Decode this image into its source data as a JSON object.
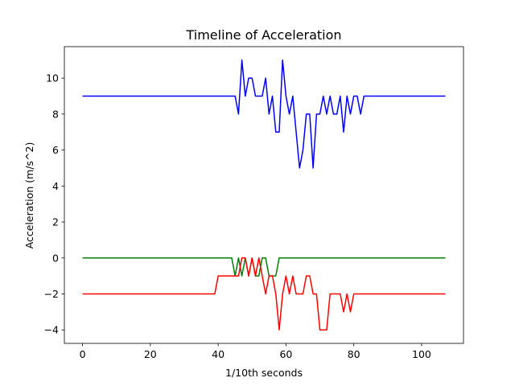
{
  "chart_data": {
    "type": "line",
    "title": "Timeline of Acceleration",
    "xlabel": "1/10th seconds",
    "ylabel": "Acceleration (m/s^2)",
    "xlim": [
      -5.35,
      112.35
    ],
    "ylim": [
      -4.75,
      11.75
    ],
    "xticks": [
      0,
      20,
      40,
      60,
      80,
      100
    ],
    "yticks": [
      -4,
      -2,
      0,
      2,
      4,
      6,
      8,
      10
    ],
    "grid": false,
    "legend": "none",
    "series": [
      {
        "color": "#0000ff",
        "points": [
          [
            0,
            9
          ],
          [
            44,
            9
          ],
          [
            45,
            9
          ],
          [
            46,
            8
          ],
          [
            47,
            11
          ],
          [
            48,
            9
          ],
          [
            49,
            10
          ],
          [
            50,
            10
          ],
          [
            51,
            9
          ],
          [
            52,
            9
          ],
          [
            53,
            9
          ],
          [
            54,
            10
          ],
          [
            55,
            8
          ],
          [
            56,
            9
          ],
          [
            57,
            7
          ],
          [
            58,
            7
          ],
          [
            59,
            11
          ],
          [
            60,
            9
          ],
          [
            61,
            8
          ],
          [
            62,
            9
          ],
          [
            63,
            7
          ],
          [
            64,
            5
          ],
          [
            65,
            6
          ],
          [
            66,
            8
          ],
          [
            67,
            8
          ],
          [
            68,
            5
          ],
          [
            69,
            8
          ],
          [
            70,
            8
          ],
          [
            71,
            9
          ],
          [
            72,
            8
          ],
          [
            73,
            9
          ],
          [
            74,
            8
          ],
          [
            75,
            8
          ],
          [
            76,
            9
          ],
          [
            77,
            7
          ],
          [
            78,
            9
          ],
          [
            79,
            8
          ],
          [
            80,
            9
          ],
          [
            81,
            9
          ],
          [
            82,
            8
          ],
          [
            83,
            9
          ],
          [
            107,
            9
          ]
        ]
      },
      {
        "color": "#008000",
        "points": [
          [
            0,
            0
          ],
          [
            44,
            0
          ],
          [
            45,
            -1
          ],
          [
            46,
            0
          ],
          [
            47,
            -1
          ],
          [
            48,
            0
          ],
          [
            49,
            -1
          ],
          [
            50,
            0
          ],
          [
            51,
            -1
          ],
          [
            52,
            -1
          ],
          [
            53,
            0
          ],
          [
            54,
            0
          ],
          [
            55,
            -1
          ],
          [
            56,
            -1
          ],
          [
            57,
            -1
          ],
          [
            58,
            0
          ],
          [
            107,
            0
          ]
        ]
      },
      {
        "color": "#ff0000",
        "points": [
          [
            0,
            -2
          ],
          [
            39,
            -2
          ],
          [
            40,
            -1
          ],
          [
            45,
            -1
          ],
          [
            46,
            -1
          ],
          [
            47,
            0
          ],
          [
            48,
            0
          ],
          [
            49,
            -1
          ],
          [
            50,
            0
          ],
          [
            51,
            -1
          ],
          [
            52,
            0
          ],
          [
            53,
            -1
          ],
          [
            54,
            -2
          ],
          [
            55,
            -1
          ],
          [
            56,
            -1
          ],
          [
            57,
            -2
          ],
          [
            58,
            -4
          ],
          [
            59,
            -2
          ],
          [
            60,
            -1
          ],
          [
            61,
            -2
          ],
          [
            62,
            -1
          ],
          [
            63,
            -2
          ],
          [
            64,
            -2
          ],
          [
            65,
            -2
          ],
          [
            66,
            -1
          ],
          [
            67,
            -1
          ],
          [
            68,
            -2
          ],
          [
            69,
            -2
          ],
          [
            70,
            -4
          ],
          [
            71,
            -4
          ],
          [
            72,
            -4
          ],
          [
            73,
            -2
          ],
          [
            74,
            -2
          ],
          [
            75,
            -2
          ],
          [
            76,
            -2
          ],
          [
            77,
            -3
          ],
          [
            78,
            -2
          ],
          [
            79,
            -3
          ],
          [
            80,
            -2
          ],
          [
            107,
            -2
          ]
        ]
      }
    ]
  }
}
